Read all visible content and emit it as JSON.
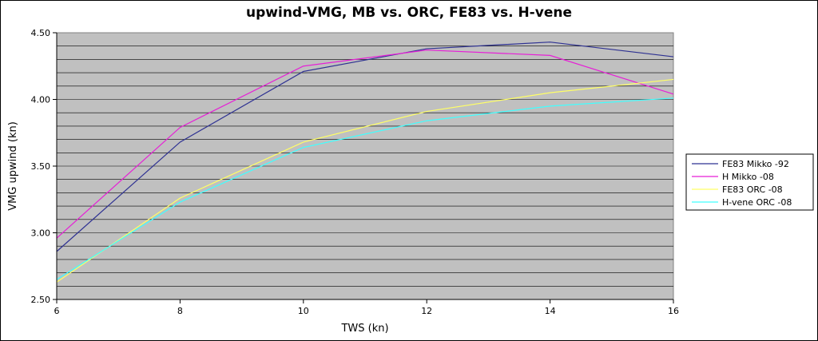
{
  "chart_data": {
    "type": "line",
    "title": "upwind-VMG, MB vs. ORC, FE83 vs. H-vene",
    "xlabel": "TWS (kn)",
    "ylabel": "VMG upwind (kn)",
    "x": [
      6,
      8,
      10,
      12,
      14,
      16
    ],
    "x_ticks": [
      "6",
      "8",
      "10",
      "12",
      "14",
      "16"
    ],
    "xlim": [
      6,
      16
    ],
    "ylim": [
      2.5,
      4.5
    ],
    "y_ticks": [
      "2.50",
      "3.00",
      "3.50",
      "4.00",
      "4.50"
    ],
    "y_tick_values": [
      2.5,
      3.0,
      3.5,
      4.0,
      4.5
    ],
    "grid": true,
    "minor_grid_step": 0.1,
    "plot_background": "#c0c0c0",
    "legend_position": "right",
    "series": [
      {
        "name": "FE83 Mikko -92",
        "color": "#2e3192",
        "values": [
          2.86,
          3.68,
          4.21,
          4.38,
          4.43,
          4.32
        ]
      },
      {
        "name": "H Mikko -08",
        "color": "#e61fd6",
        "values": [
          2.96,
          3.79,
          4.25,
          4.37,
          4.33,
          4.04
        ]
      },
      {
        "name": "FE83 ORC -08",
        "color": "#ffff66",
        "values": [
          2.63,
          3.26,
          3.68,
          3.91,
          4.05,
          4.15
        ]
      },
      {
        "name": "H-vene ORC -08",
        "color": "#40ffff",
        "values": [
          2.65,
          3.23,
          3.64,
          3.84,
          3.95,
          4.01
        ]
      }
    ]
  }
}
